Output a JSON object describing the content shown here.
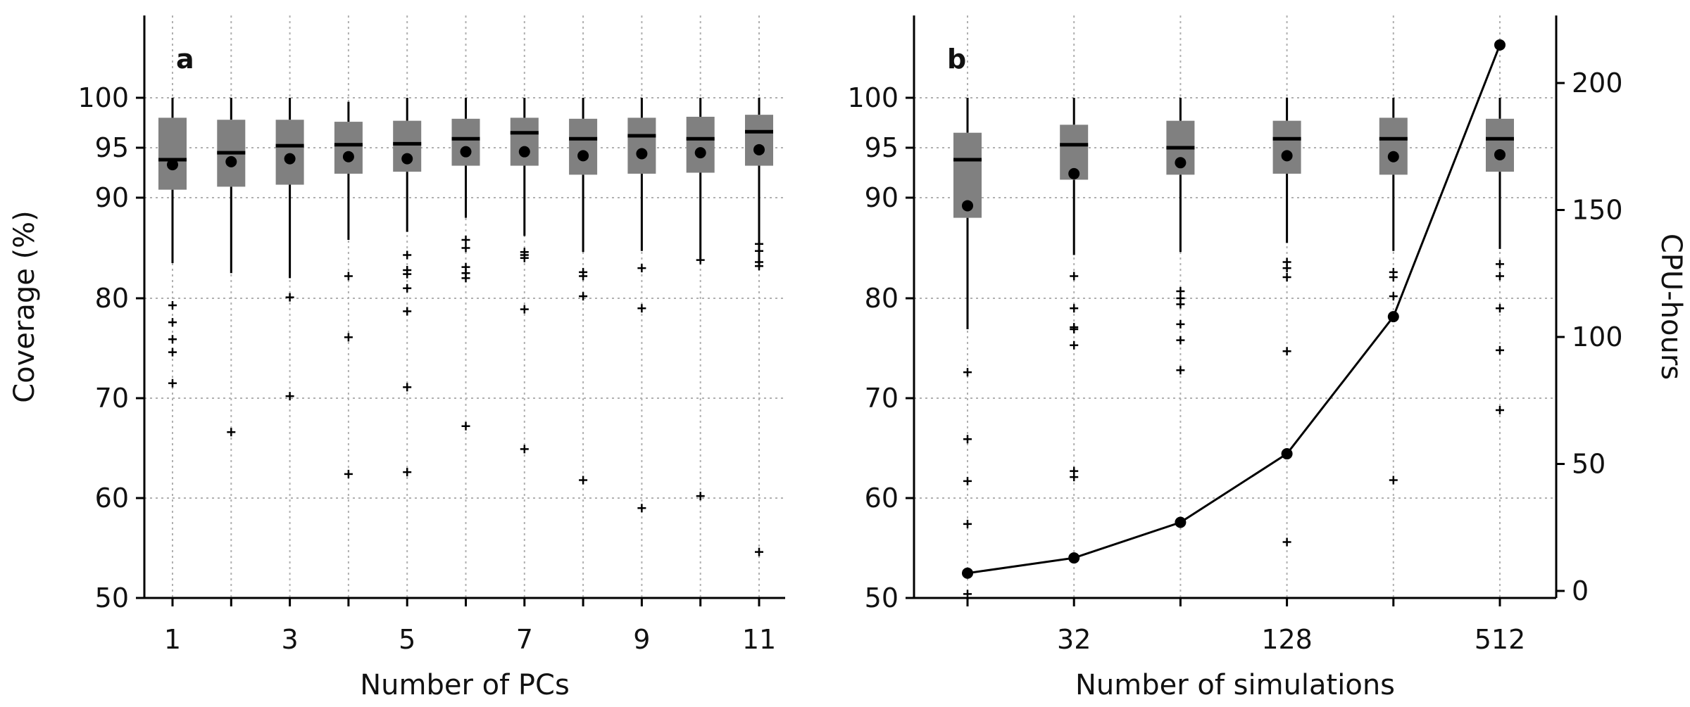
{
  "chart_data": [
    {
      "type": "box",
      "panel_label": "a",
      "xlabel": "Number of PCs",
      "ylabel": "Coverage (%)",
      "ylim": [
        50,
        104.5
      ],
      "y_scale": "log-like (compressed near 100)",
      "y_ticks": [
        50,
        60,
        70,
        80,
        90,
        95,
        100
      ],
      "x_ticks": [
        1,
        3,
        5,
        7,
        9,
        11
      ],
      "grid": true,
      "box_color": "#808080",
      "boxes": [
        {
          "x": 1,
          "whisker_low": 83.5,
          "q1": 90.8,
          "median": 93.8,
          "q3": 98.0,
          "whisker_high": 100,
          "mean": 93.3,
          "outliers": [
            79.3,
            77.6,
            75.9,
            74.6,
            71.5
          ]
        },
        {
          "x": 2,
          "whisker_low": 82.5,
          "q1": 91.1,
          "median": 94.5,
          "q3": 97.8,
          "whisker_high": 100,
          "mean": 93.6,
          "outliers": [
            66.6
          ]
        },
        {
          "x": 3,
          "whisker_low": 82.0,
          "q1": 91.3,
          "median": 95.2,
          "q3": 97.8,
          "whisker_high": 100,
          "mean": 93.9,
          "outliers": [
            80.1,
            70.2
          ]
        },
        {
          "x": 4,
          "whisker_low": 85.8,
          "q1": 92.4,
          "median": 95.3,
          "q3": 97.6,
          "whisker_high": 99.6,
          "mean": 94.1,
          "outliers": [
            82.2,
            76.1,
            62.4
          ]
        },
        {
          "x": 5,
          "whisker_low": 86.6,
          "q1": 92.6,
          "median": 95.4,
          "q3": 97.7,
          "whisker_high": 100,
          "mean": 93.9,
          "outliers": [
            84.3,
            82.8,
            82.4,
            81.0,
            78.7,
            71.1,
            62.6
          ]
        },
        {
          "x": 6,
          "whisker_low": 88.0,
          "q1": 93.2,
          "median": 95.9,
          "q3": 97.9,
          "whisker_high": 100,
          "mean": 94.6,
          "outliers": [
            85.8,
            85.0,
            83.1,
            82.5,
            82.0,
            67.2
          ]
        },
        {
          "x": 7,
          "whisker_low": 86.2,
          "q1": 93.2,
          "median": 96.5,
          "q3": 98.0,
          "whisker_high": 100,
          "mean": 94.6,
          "outliers": [
            84.6,
            84.3,
            84.0,
            78.9,
            64.9
          ]
        },
        {
          "x": 8,
          "whisker_low": 84.6,
          "q1": 92.3,
          "median": 95.9,
          "q3": 97.9,
          "whisker_high": 100,
          "mean": 94.2,
          "outliers": [
            82.6,
            82.2,
            80.2,
            61.8
          ]
        },
        {
          "x": 9,
          "whisker_low": 84.7,
          "q1": 92.4,
          "median": 96.2,
          "q3": 98.0,
          "whisker_high": 100,
          "mean": 94.4,
          "outliers": [
            83.0,
            79.0,
            59.0
          ]
        },
        {
          "x": 10,
          "whisker_low": 83.9,
          "q1": 92.5,
          "median": 95.9,
          "q3": 98.1,
          "whisker_high": 100,
          "mean": 94.5,
          "outliers": [
            83.8,
            60.2
          ]
        },
        {
          "x": 11,
          "whisker_low": 83.3,
          "q1": 93.2,
          "median": 96.6,
          "q3": 98.3,
          "whisker_high": 100,
          "mean": 94.8,
          "outliers": [
            85.4,
            84.7,
            83.6,
            83.2,
            54.6
          ]
        }
      ]
    },
    {
      "type": "box+line",
      "panel_label": "b",
      "xlabel": "Number of simulations",
      "ylabel": "",
      "ylabel_right": "CPU-hours",
      "ylim": [
        50,
        104.5
      ],
      "y_ticks": [
        50,
        60,
        70,
        80,
        90,
        95,
        100
      ],
      "y2lim": [
        -3,
        225
      ],
      "y2_ticks": [
        0,
        50,
        100,
        150,
        200
      ],
      "x_scale": "log2",
      "x_ticks": [
        32,
        128,
        512
      ],
      "grid": true,
      "box_color": "#808080",
      "boxes": [
        {
          "x": 16,
          "whisker_low": 76.9,
          "q1": 88.0,
          "median": 93.8,
          "q3": 96.5,
          "whisker_high": 100,
          "mean": 89.2,
          "outliers": [
            72.6,
            65.9,
            61.7,
            57.4,
            50.4
          ]
        },
        {
          "x": 32,
          "whisker_low": 84.3,
          "q1": 91.8,
          "median": 95.3,
          "q3": 97.3,
          "whisker_high": 100,
          "mean": 92.4,
          "outliers": [
            82.2,
            79.0,
            77.1,
            76.9,
            75.3,
            62.7,
            62.1
          ]
        },
        {
          "x": 64,
          "whisker_low": 84.6,
          "q1": 92.3,
          "median": 95.0,
          "q3": 97.7,
          "whisker_high": 100,
          "mean": 93.5,
          "outliers": [
            80.7,
            80.0,
            79.4,
            77.4,
            75.8,
            72.8
          ]
        },
        {
          "x": 128,
          "whisker_low": 85.5,
          "q1": 92.4,
          "median": 95.9,
          "q3": 97.7,
          "whisker_high": 100,
          "mean": 94.2,
          "outliers": [
            83.6,
            83.0,
            82.1,
            74.7,
            55.6
          ]
        },
        {
          "x": 256,
          "whisker_low": 84.7,
          "q1": 92.3,
          "median": 95.9,
          "q3": 98.0,
          "whisker_high": 100,
          "mean": 94.1,
          "outliers": [
            82.6,
            82.1,
            80.2,
            61.8
          ]
        },
        {
          "x": 512,
          "whisker_low": 84.9,
          "q1": 92.6,
          "median": 95.9,
          "q3": 97.9,
          "whisker_high": 100,
          "mean": 94.3,
          "outliers": [
            83.4,
            82.2,
            79.0,
            74.8,
            68.8
          ]
        }
      ],
      "line_series": {
        "name": "CPU-hours",
        "axis": "right",
        "x": [
          16,
          32,
          64,
          128,
          256,
          512
        ],
        "values": [
          7,
          13,
          27,
          54,
          108,
          215
        ]
      }
    }
  ]
}
